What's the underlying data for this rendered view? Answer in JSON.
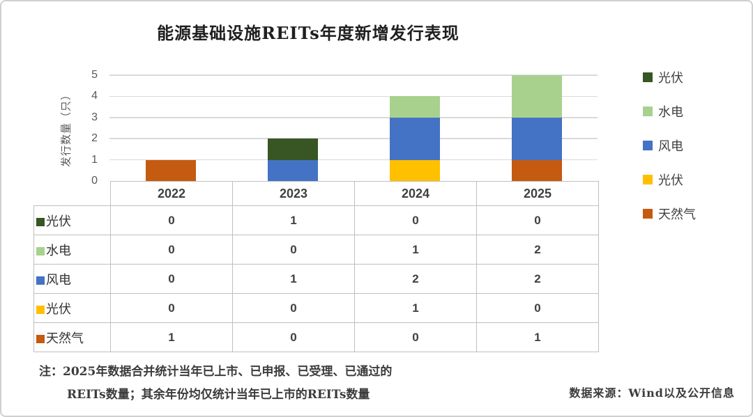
{
  "title": "能源基础设施REITs年度新增发行表现",
  "chart_data": {
    "type": "bar",
    "stacked": true,
    "title": "能源基础设施REITs年度新增发行表现",
    "ylabel": "发行数量（只）",
    "xlabel": "",
    "categories": [
      "2022",
      "2023",
      "2024",
      "2025"
    ],
    "yticks": [
      0,
      1,
      2,
      3,
      4,
      5
    ],
    "ylim": [
      0,
      5
    ],
    "grid": true,
    "legend_position": "right",
    "series": [
      {
        "name": "天然气",
        "color": "#C55A11",
        "values": [
          1,
          0,
          0,
          1
        ]
      },
      {
        "name": "光伏",
        "color": "#FFC000",
        "values": [
          0,
          0,
          1,
          0
        ]
      },
      {
        "name": "风电",
        "color": "#4472C4",
        "values": [
          0,
          1,
          2,
          2
        ]
      },
      {
        "name": "水电",
        "color": "#A9D18E",
        "values": [
          0,
          0,
          1,
          2
        ]
      },
      {
        "name": "光伏",
        "color": "#375623",
        "values": [
          0,
          1,
          0,
          0
        ]
      }
    ]
  },
  "legend": {
    "items": [
      {
        "label": "光伏",
        "color": "#375623"
      },
      {
        "label": "水电",
        "color": "#A9D18E"
      },
      {
        "label": "风电",
        "color": "#4472C4"
      },
      {
        "label": "光伏",
        "color": "#FFC000"
      },
      {
        "label": "天然气",
        "color": "#C55A11"
      }
    ]
  },
  "table": {
    "year_headers": [
      "2022",
      "2023",
      "2024",
      "2025"
    ],
    "rows": [
      {
        "label": "光伏",
        "color": "#375623",
        "values": [
          "0",
          "1",
          "0",
          "0"
        ]
      },
      {
        "label": "水电",
        "color": "#A9D18E",
        "values": [
          "0",
          "0",
          "1",
          "2"
        ]
      },
      {
        "label": "风电",
        "color": "#4472C4",
        "values": [
          "0",
          "1",
          "2",
          "2"
        ]
      },
      {
        "label": "光伏",
        "color": "#FFC000",
        "values": [
          "0",
          "0",
          "1",
          "0"
        ]
      },
      {
        "label": "天然气",
        "color": "#C55A11",
        "values": [
          "1",
          "0",
          "0",
          "1"
        ]
      }
    ]
  },
  "footnote": {
    "line1": "注：2025年数据合并统计当年已上市、已申报、已受理、已通过的",
    "line2": "REITs数量；其余年份均仅统计当年已上市的REITs数量"
  },
  "source": "数据来源：Wind以及公开信息",
  "colors": {
    "gridline": "#D9D9D9",
    "table_border": "#BFBFBF",
    "text": "#404040"
  }
}
